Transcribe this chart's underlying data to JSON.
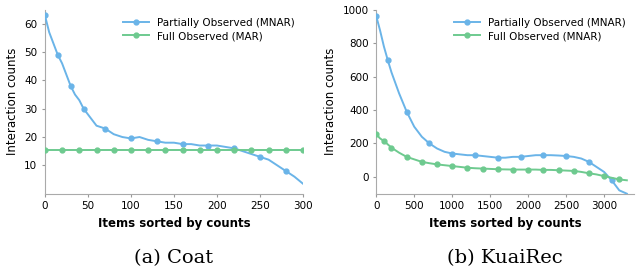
{
  "coat": {
    "title": "(a) Coat",
    "xlabel": "Items sorted by counts",
    "ylabel": "Interaction counts",
    "mnar_label": "Partially Observed (MNAR)",
    "mar_label": "Full Observed (MAR)",
    "mnar_color": "#6ab4e8",
    "mar_color": "#6eca8f",
    "xlim": [
      0,
      300
    ],
    "ylim": [
      0,
      65
    ],
    "xticks": [
      0,
      50,
      100,
      150,
      200,
      250,
      300
    ],
    "yticks": [
      10,
      20,
      30,
      40,
      50,
      60
    ],
    "mnar_x": [
      0,
      5,
      10,
      15,
      20,
      25,
      30,
      35,
      40,
      45,
      50,
      60,
      70,
      80,
      90,
      100,
      110,
      120,
      130,
      140,
      150,
      160,
      170,
      180,
      190,
      200,
      210,
      220,
      230,
      240,
      250,
      260,
      270,
      280,
      290,
      300
    ],
    "mnar_y": [
      63,
      57,
      53,
      49,
      46,
      42,
      38,
      35,
      33,
      30,
      28,
      24,
      23,
      21,
      20,
      19.5,
      20,
      19,
      18.5,
      18,
      18,
      17.5,
      17.5,
      17,
      17,
      17,
      16.5,
      16,
      15,
      14,
      13,
      12,
      10,
      8,
      6,
      3.5
    ],
    "mar_x": [
      0,
      10,
      20,
      30,
      40,
      50,
      60,
      70,
      80,
      90,
      100,
      110,
      120,
      130,
      140,
      150,
      160,
      170,
      180,
      190,
      200,
      210,
      220,
      230,
      240,
      250,
      260,
      270,
      280,
      290,
      300
    ],
    "mar_y": [
      15.5,
      15.5,
      15.5,
      15.5,
      15.5,
      15.5,
      15.5,
      15.5,
      15.5,
      15.5,
      15.5,
      15.5,
      15.5,
      15.5,
      15.5,
      15.5,
      15.5,
      15.5,
      15.5,
      15.5,
      15.5,
      15.5,
      15.5,
      15.5,
      15.5,
      15.5,
      15.5,
      15.5,
      15.5,
      15.5,
      15.5
    ],
    "mar_marker_every": 2
  },
  "kuairec": {
    "title": "(b) KuaiRec",
    "xlabel": "Items sorted by counts",
    "ylabel": "Interaction counts",
    "mnar_label": "Partially Observed (MNAR)",
    "mar_label": "Full Observed (MNAR)",
    "mnar_color": "#6ab4e8",
    "mar_color": "#6eca8f",
    "xlim": [
      0,
      3400
    ],
    "ylim": [
      -100,
      1000
    ],
    "xticks": [
      0,
      500,
      1000,
      1500,
      2000,
      2500,
      3000
    ],
    "yticks": [
      0,
      200,
      400,
      600,
      800,
      1000
    ],
    "mnar_x": [
      0,
      50,
      100,
      150,
      200,
      300,
      400,
      500,
      600,
      700,
      800,
      900,
      1000,
      1100,
      1200,
      1300,
      1400,
      1500,
      1600,
      1700,
      1800,
      1900,
      2000,
      2100,
      2200,
      2300,
      2400,
      2500,
      2600,
      2700,
      2800,
      2900,
      3000,
      3100,
      3200,
      3300
    ],
    "mnar_y": [
      960,
      875,
      780,
      700,
      625,
      500,
      390,
      300,
      240,
      200,
      170,
      150,
      140,
      135,
      130,
      130,
      125,
      120,
      115,
      115,
      120,
      120,
      125,
      130,
      130,
      130,
      128,
      125,
      120,
      110,
      90,
      60,
      30,
      -20,
      -80,
      -100
    ],
    "mar_x": [
      0,
      50,
      100,
      150,
      200,
      300,
      400,
      500,
      600,
      700,
      800,
      900,
      1000,
      1100,
      1200,
      1300,
      1400,
      1500,
      1600,
      1700,
      1800,
      1900,
      2000,
      2100,
      2200,
      2300,
      2400,
      2500,
      2600,
      2700,
      2800,
      2900,
      3000,
      3100,
      3200,
      3300
    ],
    "mar_y": [
      255,
      230,
      215,
      195,
      175,
      145,
      120,
      105,
      90,
      82,
      75,
      70,
      65,
      60,
      55,
      52,
      50,
      48,
      46,
      45,
      44,
      44,
      44,
      44,
      42,
      42,
      40,
      38,
      36,
      30,
      22,
      15,
      5,
      -5,
      -15,
      -20
    ],
    "mar_marker_every": 2
  },
  "background_color": "#ffffff",
  "line_width": 1.4,
  "marker": "o",
  "marker_size": 3.5,
  "title_fontsize": 14,
  "label_fontsize": 8.5,
  "tick_fontsize": 7.5,
  "legend_fontsize": 7.5
}
